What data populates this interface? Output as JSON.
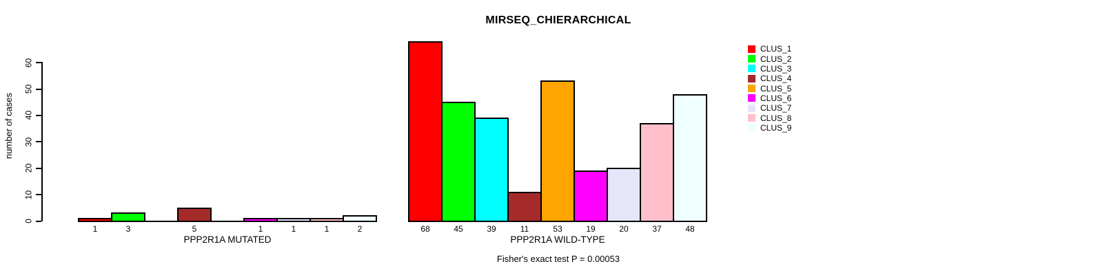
{
  "chart_data": {
    "type": "bar",
    "title": "MIRSEQ_CHIERARCHICAL",
    "ylabel": "number of cases",
    "annotation": "Fisher's exact test P = 0.00053",
    "clusters": [
      "CLUS_1",
      "CLUS_2",
      "CLUS_3",
      "CLUS_4",
      "CLUS_5",
      "CLUS_6",
      "CLUS_7",
      "CLUS_8",
      "CLUS_9"
    ],
    "colors": [
      "#FF0000",
      "#00FF00",
      "#00FFFF",
      "#A52A2A",
      "#FFA500",
      "#FF00FF",
      "#E6E6FA",
      "#FFC0CB",
      "#F0FFFF"
    ],
    "bar_border_color": "#000000",
    "groups": [
      {
        "label": "PPP2R1A MUTATED",
        "values": [
          1,
          3,
          0,
          5,
          0,
          1,
          1,
          1,
          2
        ]
      },
      {
        "label": "PPP2R1A WILD-TYPE",
        "values": [
          68,
          45,
          39,
          11,
          53,
          19,
          20,
          37,
          48
        ]
      }
    ],
    "yticks": [
      0,
      10,
      20,
      30,
      40,
      50,
      60
    ],
    "ylim": [
      0,
      68
    ],
    "grid": false,
    "legend_position": "top-right",
    "value_labels": "counts shown under each bar, zeros omitted"
  }
}
